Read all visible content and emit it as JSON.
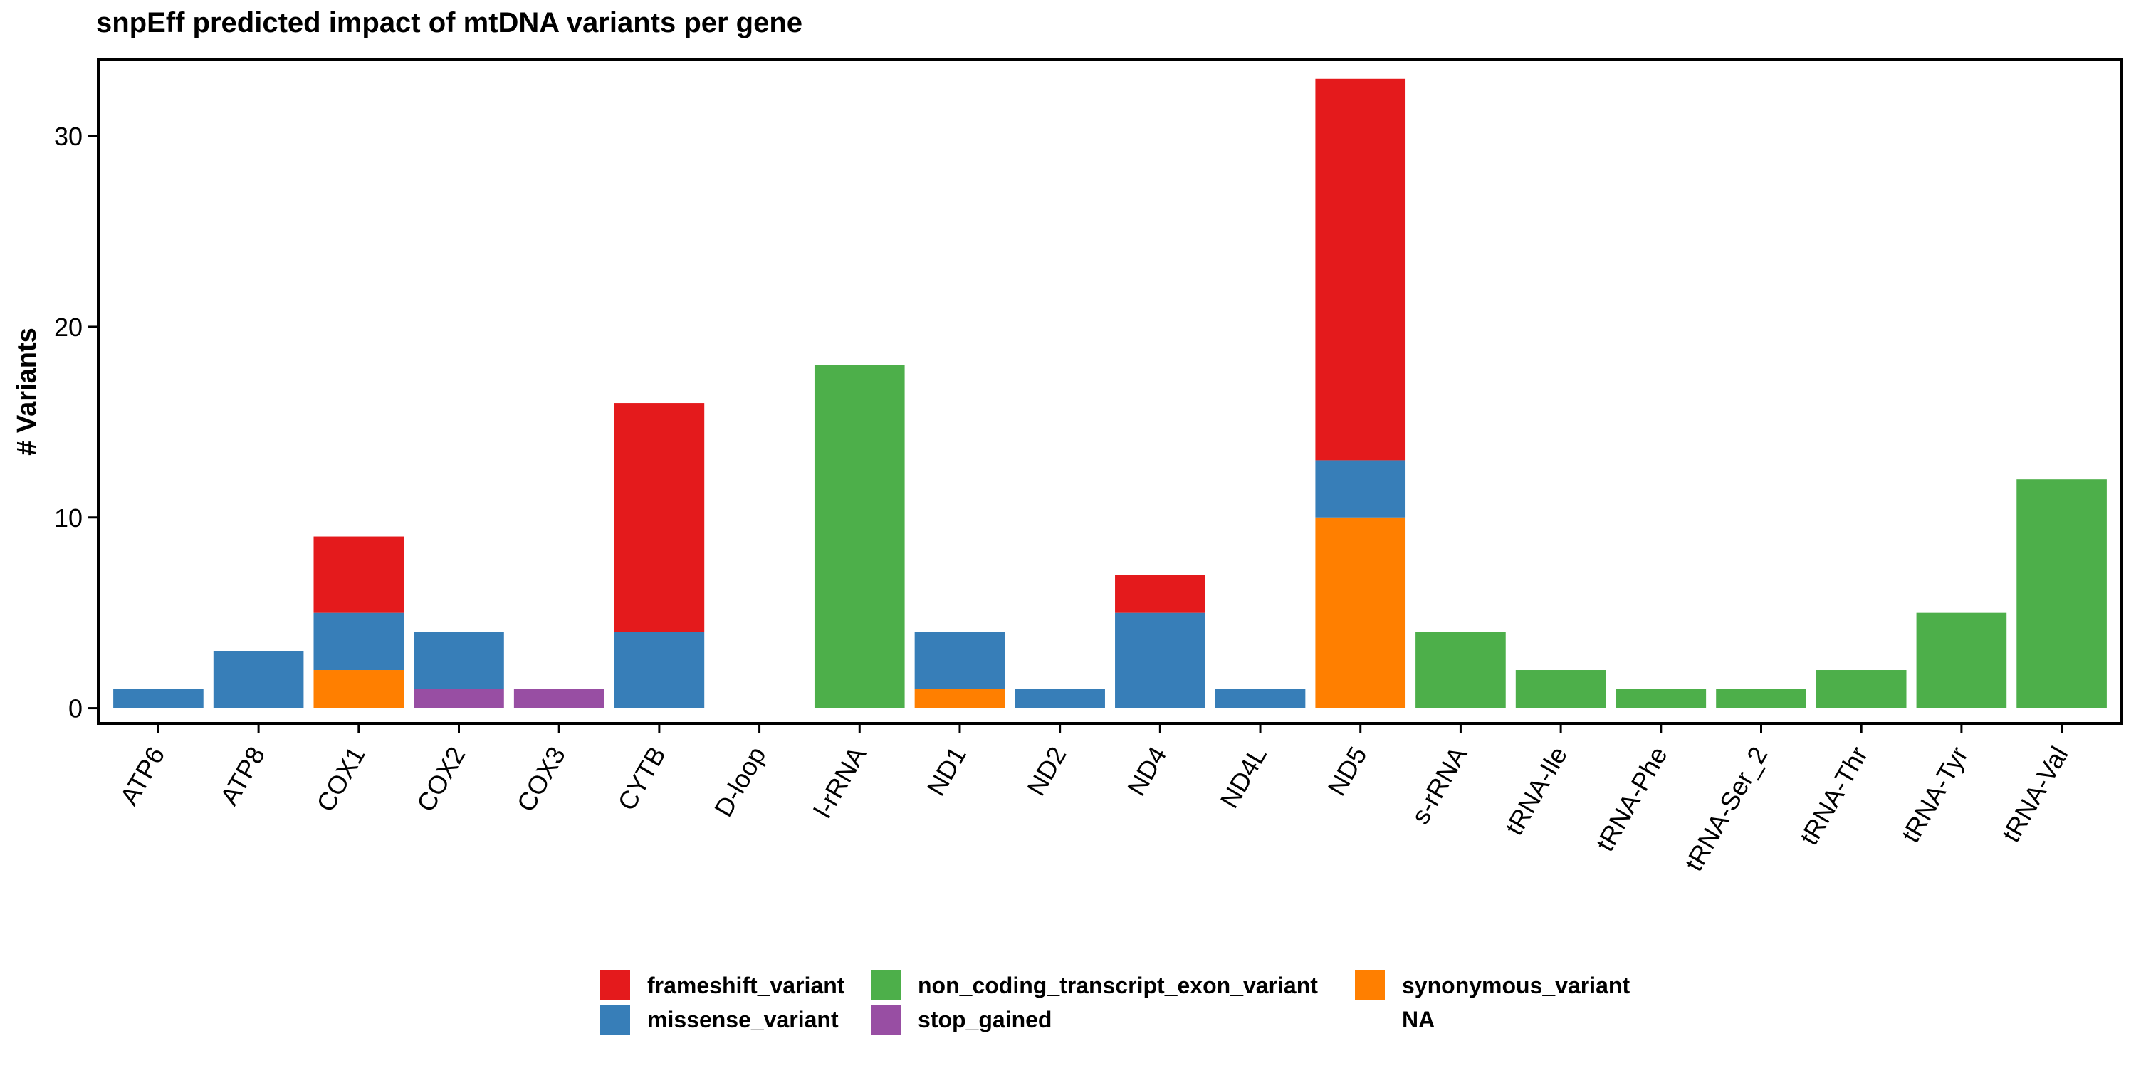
{
  "chart_data": {
    "type": "bar",
    "stacked": true,
    "title": "snpEff predicted impact of mtDNA variants per gene",
    "xlabel": "",
    "ylabel": "# Variants",
    "ylim": [
      -0.8,
      34
    ],
    "yticks": [
      0,
      10,
      20,
      30
    ],
    "grid": false,
    "legend_position": "bottom",
    "categories": [
      "ATP6",
      "ATP8",
      "COX1",
      "COX2",
      "COX3",
      "CYTB",
      "D-loop",
      "l-rRNA",
      "ND1",
      "ND2",
      "ND4",
      "ND4L",
      "ND5",
      "s-rRNA",
      "tRNA-Ile",
      "tRNA-Phe",
      "tRNA-Ser_2",
      "tRNA-Thr",
      "tRNA-Tyr",
      "tRNA-Val"
    ],
    "series": [
      {
        "name": "synonymous_variant",
        "color": "#FF7F00",
        "values": [
          0,
          0,
          2,
          0,
          0,
          0,
          0,
          0,
          1,
          0,
          0,
          0,
          10,
          0,
          0,
          0,
          0,
          0,
          0,
          0
        ]
      },
      {
        "name": "stop_gained",
        "color": "#984EA3",
        "values": [
          0,
          0,
          0,
          1,
          1,
          0,
          0,
          0,
          0,
          0,
          0,
          0,
          0,
          0,
          0,
          0,
          0,
          0,
          0,
          0
        ]
      },
      {
        "name": "non_coding_transcript_exon_variant",
        "color": "#4DAF4A",
        "values": [
          0,
          0,
          0,
          0,
          0,
          0,
          0,
          18,
          0,
          0,
          0,
          0,
          0,
          4,
          2,
          1,
          1,
          2,
          5,
          12
        ]
      },
      {
        "name": "missense_variant",
        "color": "#377EB8",
        "values": [
          1,
          3,
          3,
          3,
          0,
          4,
          0,
          0,
          3,
          1,
          5,
          1,
          3,
          0,
          0,
          0,
          0,
          0,
          0,
          0
        ]
      },
      {
        "name": "frameshift_variant",
        "color": "#E41A1C",
        "values": [
          0,
          0,
          4,
          0,
          0,
          12,
          0,
          0,
          0,
          0,
          2,
          0,
          20,
          0,
          0,
          0,
          0,
          0,
          0,
          0
        ]
      },
      {
        "name": "NA",
        "color": "#999999",
        "values": [
          0,
          0,
          0,
          0,
          0,
          0,
          0,
          0,
          0,
          0,
          0,
          0,
          0,
          0,
          0,
          0,
          0,
          0,
          0,
          0
        ]
      }
    ],
    "legend": [
      {
        "name": "frameshift_variant",
        "color": "#E41A1C"
      },
      {
        "name": "non_coding_transcript_exon_variant",
        "color": "#4DAF4A"
      },
      {
        "name": "synonymous_variant",
        "color": "#FF7F00"
      },
      {
        "name": "missense_variant",
        "color": "#377EB8"
      },
      {
        "name": "stop_gained",
        "color": "#984EA3"
      },
      {
        "name": "NA",
        "color": ""
      }
    ]
  }
}
